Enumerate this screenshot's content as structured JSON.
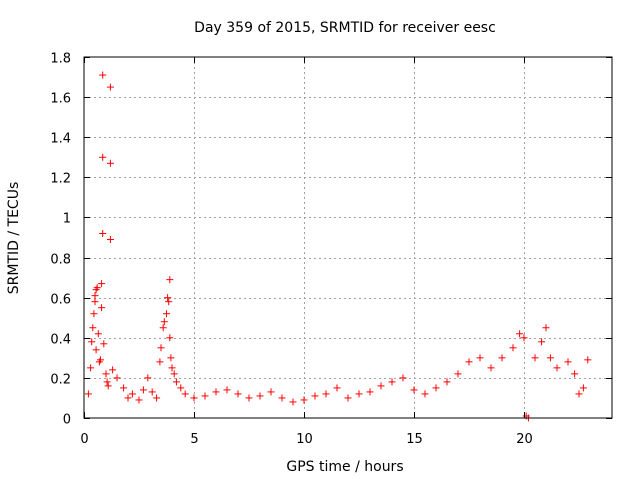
{
  "chart_data": {
    "type": "scatter",
    "title": "Day 359 of 2015, SRMTID for receiver eesc",
    "xlabel": "GPS time / hours",
    "ylabel": "SRMTID / TECUs",
    "xlim": [
      0,
      24
    ],
    "ylim": [
      0,
      1.8
    ],
    "xticks": [
      0,
      5,
      10,
      15,
      20
    ],
    "xtick_labels": [
      "0",
      "5",
      "10",
      "15",
      "20"
    ],
    "yticks": [
      0,
      0.2,
      0.4,
      0.6,
      0.8,
      1.0,
      1.2,
      1.4,
      1.6,
      1.8
    ],
    "ytick_labels": [
      "0",
      "0.2",
      "0.4",
      "0.6",
      "0.8",
      "1",
      "1.2",
      "1.4",
      "1.6",
      "1.8"
    ],
    "grid": true,
    "marker": "+",
    "color": "#ff0000",
    "series": [
      {
        "name": "SRMTID",
        "points": [
          [
            0.2,
            0.12
          ],
          [
            0.3,
            0.25
          ],
          [
            0.35,
            0.38
          ],
          [
            0.4,
            0.45
          ],
          [
            0.45,
            0.52
          ],
          [
            0.5,
            0.58
          ],
          [
            0.5,
            0.61
          ],
          [
            0.55,
            0.64
          ],
          [
            0.6,
            0.65
          ],
          [
            0.55,
            0.34
          ],
          [
            0.65,
            0.42
          ],
          [
            0.7,
            0.28
          ],
          [
            0.75,
            0.29
          ],
          [
            0.8,
            0.67
          ],
          [
            0.8,
            0.55
          ],
          [
            0.85,
            1.71
          ],
          [
            0.85,
            1.3
          ],
          [
            0.85,
            0.92
          ],
          [
            1.2,
            1.65
          ],
          [
            1.2,
            1.27
          ],
          [
            1.2,
            0.89
          ],
          [
            0.9,
            0.37
          ],
          [
            1.0,
            0.22
          ],
          [
            1.05,
            0.18
          ],
          [
            1.1,
            0.16
          ],
          [
            1.3,
            0.24
          ],
          [
            1.5,
            0.2
          ],
          [
            1.8,
            0.15
          ],
          [
            2.0,
            0.1
          ],
          [
            2.2,
            0.12
          ],
          [
            2.5,
            0.09
          ],
          [
            2.7,
            0.14
          ],
          [
            2.9,
            0.2
          ],
          [
            3.1,
            0.13
          ],
          [
            3.3,
            0.1
          ],
          [
            3.45,
            0.28
          ],
          [
            3.5,
            0.35
          ],
          [
            3.6,
            0.45
          ],
          [
            3.65,
            0.48
          ],
          [
            3.75,
            0.52
          ],
          [
            3.8,
            0.6
          ],
          [
            3.85,
            0.58
          ],
          [
            3.9,
            0.69
          ],
          [
            3.9,
            0.4
          ],
          [
            3.95,
            0.3
          ],
          [
            4.0,
            0.25
          ],
          [
            4.1,
            0.22
          ],
          [
            4.2,
            0.18
          ],
          [
            4.4,
            0.15
          ],
          [
            4.6,
            0.12
          ],
          [
            5.0,
            0.1
          ],
          [
            5.5,
            0.11
          ],
          [
            6.0,
            0.13
          ],
          [
            6.5,
            0.14
          ],
          [
            7.0,
            0.12
          ],
          [
            7.5,
            0.1
          ],
          [
            8.0,
            0.11
          ],
          [
            8.5,
            0.13
          ],
          [
            9.0,
            0.1
          ],
          [
            9.5,
            0.08
          ],
          [
            10.0,
            0.09
          ],
          [
            10.5,
            0.11
          ],
          [
            11.0,
            0.12
          ],
          [
            11.5,
            0.15
          ],
          [
            12.0,
            0.1
          ],
          [
            12.5,
            0.12
          ],
          [
            13.0,
            0.13
          ],
          [
            13.5,
            0.16
          ],
          [
            14.0,
            0.18
          ],
          [
            14.5,
            0.2
          ],
          [
            15.0,
            0.14
          ],
          [
            15.5,
            0.12
          ],
          [
            16.0,
            0.15
          ],
          [
            16.5,
            0.18
          ],
          [
            17.0,
            0.22
          ],
          [
            17.5,
            0.28
          ],
          [
            18.0,
            0.3
          ],
          [
            18.5,
            0.25
          ],
          [
            19.0,
            0.3
          ],
          [
            19.5,
            0.35
          ],
          [
            19.8,
            0.42
          ],
          [
            20.0,
            0.4
          ],
          [
            20.1,
            0.01
          ],
          [
            20.2,
            0.0
          ],
          [
            20.5,
            0.3
          ],
          [
            20.8,
            0.38
          ],
          [
            21.0,
            0.45
          ],
          [
            21.2,
            0.3
          ],
          [
            21.5,
            0.25
          ],
          [
            22.0,
            0.28
          ],
          [
            22.3,
            0.22
          ],
          [
            22.5,
            0.12
          ],
          [
            22.7,
            0.15
          ],
          [
            22.9,
            0.29
          ]
        ]
      }
    ]
  }
}
